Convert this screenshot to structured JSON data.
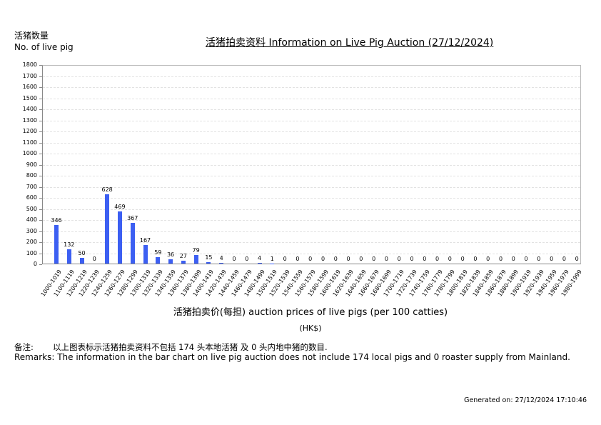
{
  "header": {
    "ylabel_cn": "活猪数量",
    "ylabel_en": "No. of live pig",
    "title": "活猪拍卖资料 Information on Live Pig Auction (27/12/2024)"
  },
  "axis": {
    "xlabel": "活猪拍卖价(每担) auction prices of live pigs (per 100 catties)",
    "xunit": "(HK$)"
  },
  "remarks": {
    "cn_label": "备注:",
    "cn_text": "以上图表标示活猪拍卖资料不包括 174 头本地活猪 及 0 头内地中猪的数目.",
    "en_text": "Remarks: The information in the bar chart on live pig auction does not include 174 local pigs and 0 roaster supply from Mainland."
  },
  "footer": {
    "generated": "Generated on: 27/12/2024 17:10:46"
  },
  "colors": {
    "bar": "#3c5ff2",
    "grid": "#e2e2e2",
    "axis": "#888888"
  },
  "chart_data": {
    "type": "bar",
    "title": "活猪拍卖资料 Information on Live Pig Auction (27/12/2024)",
    "xlabel": "活猪拍卖价(每担) auction prices of live pigs (per 100 catties) (HK$)",
    "ylabel": "活猪数量 No. of live pig",
    "ylim": [
      0,
      1800
    ],
    "yticks": [
      0,
      100,
      200,
      300,
      400,
      500,
      600,
      700,
      800,
      900,
      1000,
      1100,
      1200,
      1300,
      1400,
      1500,
      1600,
      1700,
      1800
    ],
    "grid": true,
    "categories": [
      "1000-1019",
      "1100-1119",
      "1200-1219",
      "1220-1239",
      "1240-1259",
      "1260-1279",
      "1280-1299",
      "1300-1319",
      "1320-1339",
      "1340-1359",
      "1360-1379",
      "1380-1399",
      "1400-1419",
      "1420-1439",
      "1440-1459",
      "1460-1479",
      "1480-1499",
      "1500-1519",
      "1520-1539",
      "1540-1559",
      "1560-1579",
      "1580-1599",
      "1600-1619",
      "1620-1639",
      "1640-1659",
      "1660-1679",
      "1680-1699",
      "1700-1719",
      "1720-1739",
      "1740-1759",
      "1760-1779",
      "1780-1799",
      "1800-1819",
      "1820-1839",
      "1840-1859",
      "1860-1879",
      "1880-1899",
      "1900-1919",
      "1920-1939",
      "1940-1959",
      "1960-1979",
      "1980-1999"
    ],
    "values": [
      346,
      132,
      50,
      0,
      628,
      469,
      367,
      167,
      59,
      36,
      27,
      79,
      15,
      4,
      0,
      0,
      4,
      1,
      0,
      0,
      0,
      0,
      0,
      0,
      0,
      0,
      0,
      0,
      0,
      0,
      0,
      0,
      0,
      0,
      0,
      0,
      0,
      0,
      0,
      0,
      0,
      0
    ]
  }
}
